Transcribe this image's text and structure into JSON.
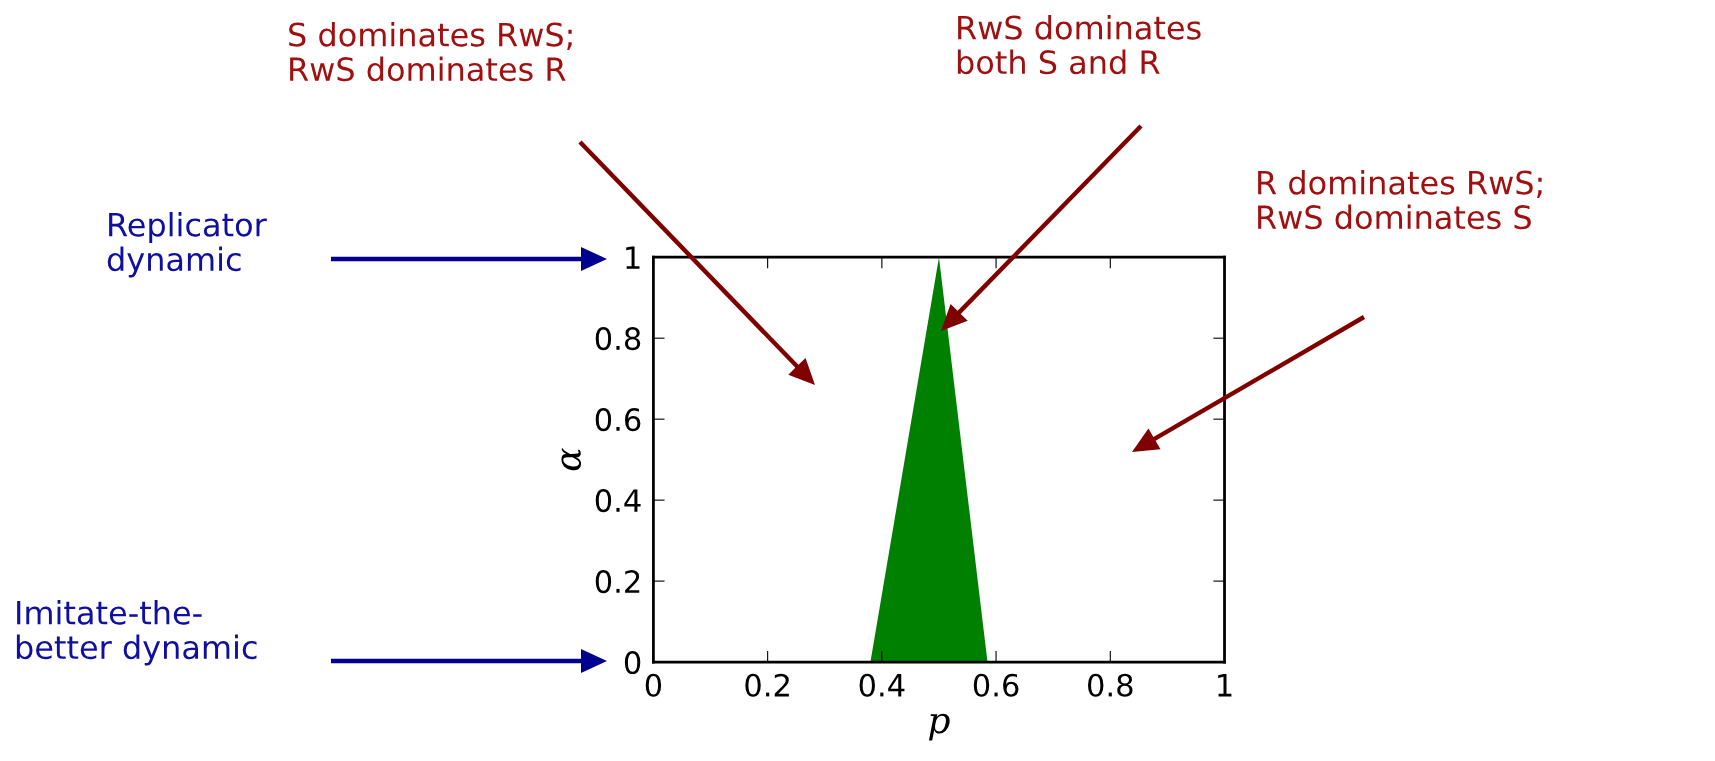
{
  "chart_data": {
    "type": "area",
    "xlabel": "p",
    "ylabel": "α",
    "x": [
      0,
      0.38,
      0.5,
      0.585,
      1
    ],
    "series": [
      {
        "color": "#008000",
        "values": [
          0,
          0,
          1,
          0,
          0
        ]
      }
    ],
    "xlim": [
      0,
      1
    ],
    "ylim": [
      0,
      1
    ],
    "xticks": [
      0,
      0.2,
      0.4,
      0.6,
      0.8,
      1
    ],
    "yticks": [
      0,
      0.2,
      0.4,
      0.6,
      0.8,
      1
    ],
    "grid": false,
    "legend": false,
    "annotations": [
      "S dominates RwS;\nRwS dominates R",
      "RwS dominates\nboth S and R",
      "R dominates RwS;\nRwS dominates S",
      "Replicator\ndynamic",
      "Imitate-the-\nbetter dynamic"
    ]
  }
}
